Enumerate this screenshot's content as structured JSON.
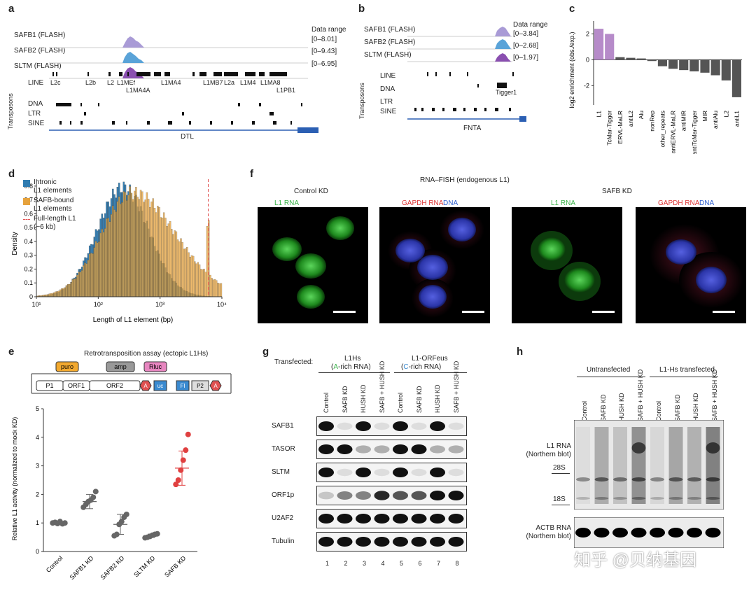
{
  "panels": {
    "a": "a",
    "b": "b",
    "c": "c",
    "d": "d",
    "e": "e",
    "f": "f",
    "g": "g",
    "h": "h"
  },
  "panel_a": {
    "tracks": [
      "SAFB1 (FLASH)",
      "SAFB2 (FLASH)",
      "SLTM (FLASH)"
    ],
    "data_range_title": "Data range",
    "ranges": [
      "[0–8.01]",
      "[0–9.43]",
      "[0–6.95]"
    ],
    "transposons_label": "Transposons",
    "rows": [
      "LINE",
      "DNA",
      "LTR",
      "SINE"
    ],
    "line_elements_top": [
      "L2c",
      "L2b",
      "L2",
      "L1MEf",
      "L1MA4",
      "L1MB7",
      "L2a",
      "L1M4",
      "L1MA8"
    ],
    "line_elements_bottom": [
      "L1MA4A",
      "L1PB1"
    ],
    "gene": "DTL"
  },
  "panel_b": {
    "tracks": [
      "SAFB1 (FLASH)",
      "SAFB2 (FLASH)",
      "SLTM (FLASH)"
    ],
    "data_range_title": "Data range",
    "ranges": [
      "[0–3.84]",
      "[0–2.68]",
      "[0–1.97]"
    ],
    "transposons_label": "Transposons",
    "rows": [
      "LINE",
      "DNA",
      "LTR",
      "SINE"
    ],
    "dna_element": "Tigger1",
    "gene": "FNTA"
  },
  "panel_d": {
    "legend": [
      "Intronic",
      "L1 elements",
      "SAFB-bound",
      "L1 elements",
      "Full-length L1",
      "(~6 kb)"
    ]
  },
  "panel_f": {
    "title": "RNA–FISH (endogenous L1)",
    "control": "Control KD",
    "safb": "SAFB KD",
    "l1": "L1 RNA",
    "gapdh": "GAPDH RNA",
    "dna": "DNA"
  },
  "panel_e": {
    "assay_title": "Retrotransposition assay (ectopic L1Hs)",
    "boxes": [
      "puro",
      "amp",
      "Rluc",
      "P1",
      "ORF1",
      "ORF2",
      "A",
      "uc",
      "Fl",
      "P2",
      "A"
    ]
  },
  "panel_g": {
    "transfected_label": "Transfected:",
    "group1": "L1Hs",
    "group1_sub_pre": "(",
    "group1_sub_letter": "A",
    "group1_sub_post": "-rich RNA)",
    "group2": "L1-ORFeus",
    "group2_sub_pre": "(",
    "group2_sub_letter": "C",
    "group2_sub_post": "-rich RNA)",
    "lanes": [
      "Control",
      "SAFB KD",
      "HUSH KD",
      "SAFB + HUSH KD",
      "Control",
      "SAFB KD",
      "HUSH KD",
      "SAFB + HUSH KD"
    ],
    "rows": [
      "SAFB1",
      "TASOR",
      "SLTM",
      "ORF1p",
      "U2AF2",
      "Tubulin"
    ],
    "lane_numbers": [
      "1",
      "2",
      "3",
      "4",
      "5",
      "6",
      "7",
      "8"
    ]
  },
  "panel_h": {
    "group1": "Untransfected",
    "group2": "L1-Hs transfected",
    "lanes": [
      "Control",
      "SAFB KD",
      "HUSH KD",
      "SAFB + HUSH KD",
      "Control",
      "SAFB KD",
      "HUSH KD",
      "SAFB + HUSH KD"
    ],
    "blot1_label_1": "L1 RNA",
    "blot1_label_2": "(Northern blot)",
    "marker_28s": "28S",
    "marker_18s": "18S",
    "blot2_label_1": "ACTB RNA",
    "blot2_label_2": "(Northern blot)",
    "watermark": "知乎 @贝纳基因"
  },
  "chart_data": [
    {
      "id": "c",
      "type": "bar",
      "ylabel": "log2 enrichment (obs./exp.)",
      "ylim": [
        -3.5,
        3
      ],
      "yticks": [
        2,
        0,
        -2
      ],
      "categories": [
        "L1",
        "TcMar-Tigger",
        "ERVL-MaLR",
        "antiL2",
        "Alu",
        "nonRep",
        "other_repeats",
        "antiERVL-MaLR",
        "antiMIR",
        "antiTcMar-Tigger",
        "MIR",
        "antiAlu",
        "L2",
        "antiL1"
      ],
      "values": [
        2.4,
        2.0,
        0.2,
        0.15,
        0.1,
        -0.1,
        -0.5,
        -0.7,
        -0.8,
        -0.9,
        -1.0,
        -1.2,
        -1.6,
        -2.9
      ],
      "colors": {
        "positive_highlight": "#b68bc9",
        "default": "#555555"
      },
      "highlight_count": 2
    },
    {
      "id": "d",
      "type": "histogram",
      "xlabel": "Length of L1 element (bp)",
      "ylabel": "Density",
      "xscale": "log",
      "xlim_log10": [
        1,
        4
      ],
      "ylim": [
        0,
        0.85
      ],
      "yticks": [
        0,
        0.1,
        0.2,
        0.3,
        0.4,
        0.5,
        0.6,
        0.7,
        0.8
      ],
      "xtick_labels": [
        "10¹",
        "10²",
        "10³",
        "10⁴"
      ],
      "series": [
        {
          "name": "Intronic L1 elements",
          "color": "#2f7bb0",
          "peak_log10": 2.4,
          "width": 0.42,
          "peak": 0.84
        },
        {
          "name": "SAFB-bound L1 elements",
          "color": "#e6a23c",
          "peak_log10": 2.55,
          "width": 0.5,
          "peak": 0.8,
          "spike_log10": 3.78,
          "spike": 0.58
        }
      ],
      "vline_log10": 3.78,
      "vline_color": "#e05050"
    },
    {
      "id": "e",
      "type": "scatter",
      "ylabel": "Relative L1 activity (normalized to mock KD)",
      "ylim": [
        0,
        5
      ],
      "yticks": [
        0,
        1,
        2,
        3,
        4,
        5
      ],
      "categories": [
        "Control",
        "SAFB1 KD",
        "SAFB2 KD",
        "SLTM KD",
        "SAFB KD"
      ],
      "points": [
        [
          1.0,
          1.02,
          0.98,
          1.05,
          0.97,
          1.0
        ],
        [
          1.55,
          1.65,
          1.75,
          1.8,
          1.9,
          2.1
        ],
        [
          0.55,
          0.6,
          0.95,
          1.05,
          1.2,
          1.3
        ],
        [
          0.48,
          0.5,
          0.53,
          0.57,
          0.6,
          0.62
        ],
        [
          2.35,
          2.5,
          2.85,
          3.2,
          3.55,
          4.1
        ]
      ],
      "means": [
        1.0,
        1.75,
        0.95,
        0.55,
        2.92
      ],
      "errors": [
        0.05,
        0.25,
        0.35,
        0.06,
        0.6
      ],
      "colors": [
        "#666666",
        "#666666",
        "#666666",
        "#666666",
        "#e04040"
      ]
    }
  ]
}
